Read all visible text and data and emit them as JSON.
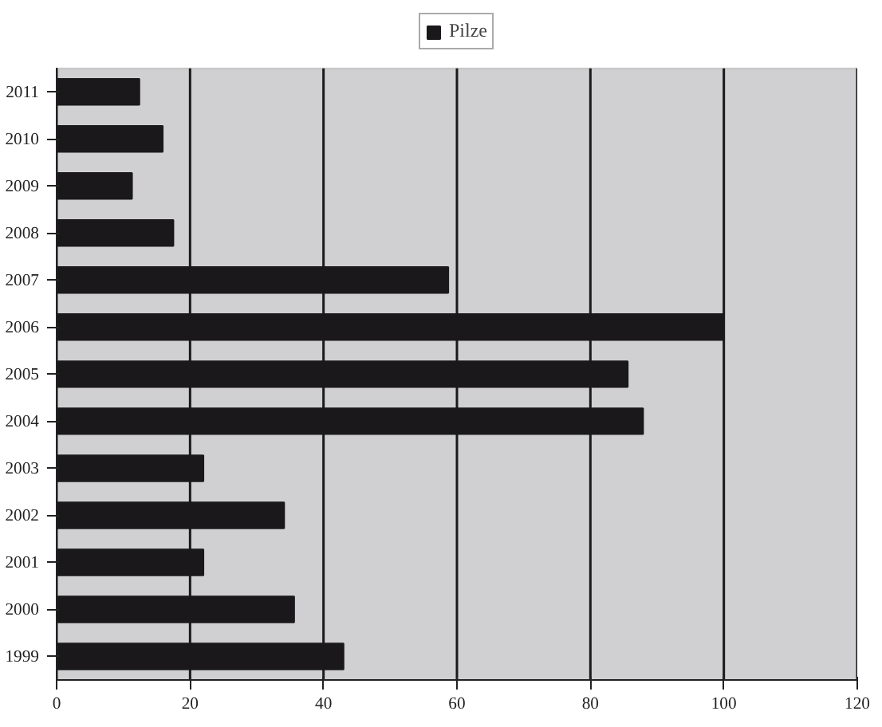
{
  "chart_data": {
    "type": "bar",
    "orientation": "horizontal",
    "categories": [
      "2011",
      "2010",
      "2009",
      "2008",
      "2007",
      "2006",
      "2005",
      "2004",
      "2003",
      "2002",
      "2001",
      "2000",
      "1999"
    ],
    "series": [
      {
        "name": "Pilze",
        "color": "#1a181b",
        "values": [
          12.4,
          15.9,
          11.3,
          17.5,
          58.7,
          100,
          85.6,
          87.9,
          22.0,
          34.1,
          22.0,
          35.6,
          43.0
        ]
      }
    ],
    "xlim": [
      0,
      120
    ],
    "xticks": [
      0,
      20,
      40,
      60,
      80,
      100,
      120
    ],
    "grid": "x",
    "legend": "top"
  }
}
